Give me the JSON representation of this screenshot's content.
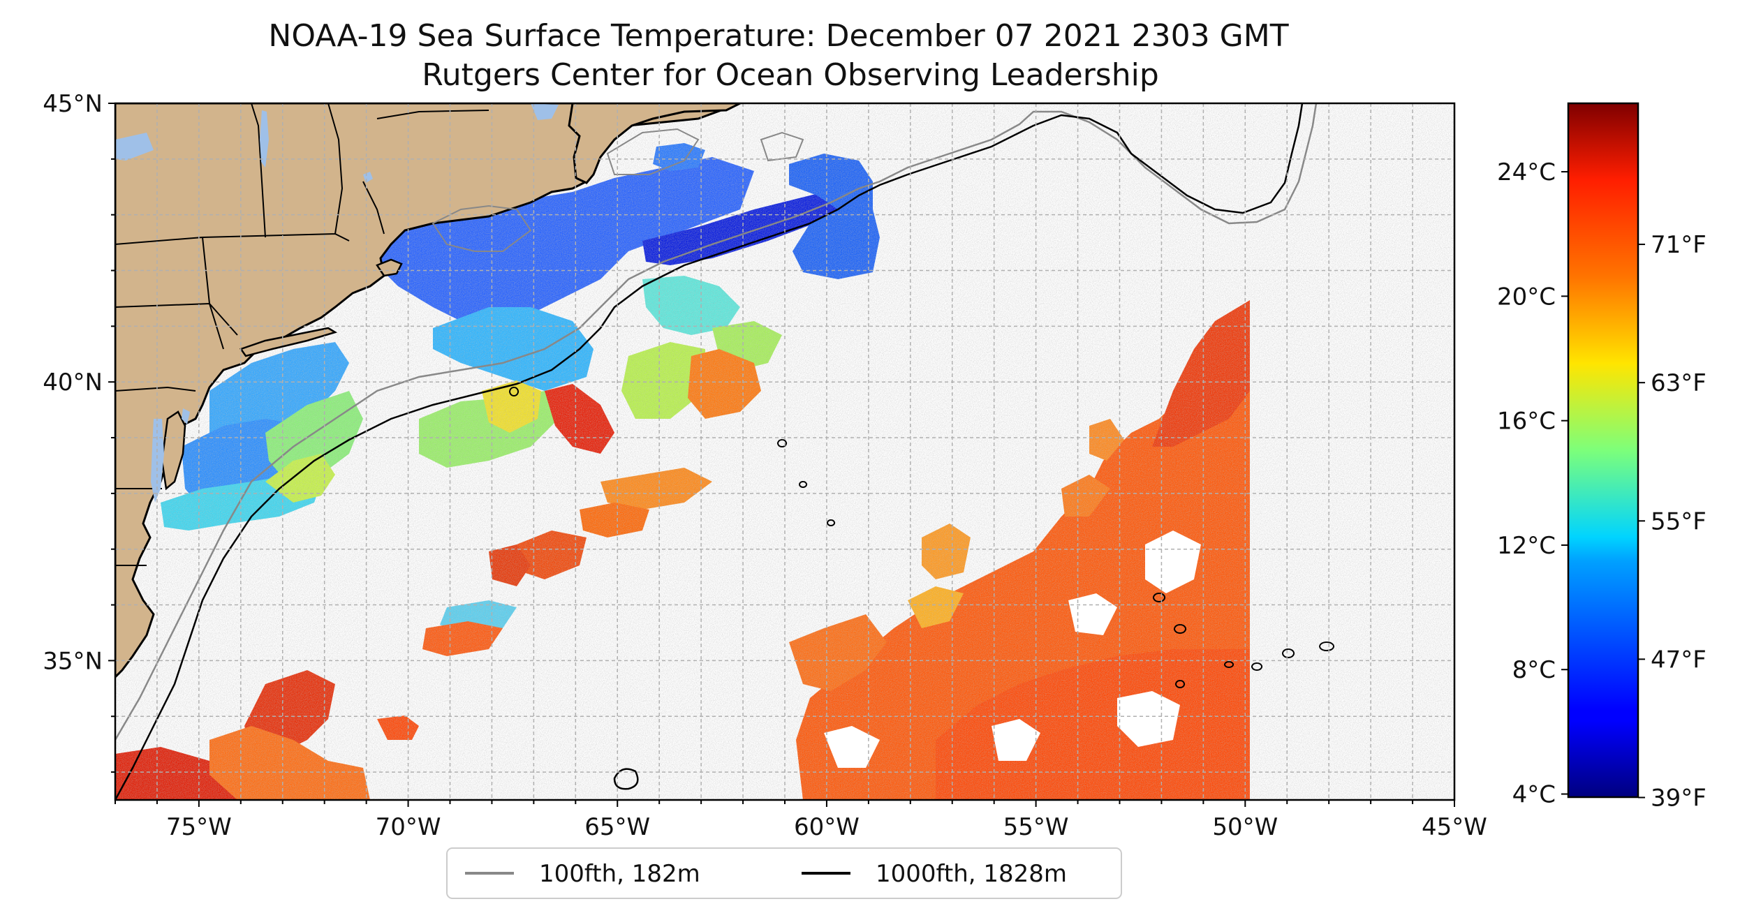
{
  "title": {
    "line1": "NOAA-19 Sea Surface Temperature: December 07 2021 2303 GMT",
    "line2": "Rutgers Center for Ocean Observing Leadership"
  },
  "map": {
    "lon_range": [
      -77,
      -45
    ],
    "lat_range": [
      32.5,
      45
    ],
    "x_ticks": [
      {
        "lon": -75,
        "label": "75°W"
      },
      {
        "lon": -70,
        "label": "70°W"
      },
      {
        "lon": -65,
        "label": "65°W"
      },
      {
        "lon": -60,
        "label": "60°W"
      },
      {
        "lon": -55,
        "label": "55°W"
      },
      {
        "lon": -50,
        "label": "50°W"
      },
      {
        "lon": -45,
        "label": "45°W"
      }
    ],
    "y_ticks": [
      {
        "lat": 45,
        "label": "45°N"
      },
      {
        "lat": 40,
        "label": "40°N"
      },
      {
        "lat": 35,
        "label": "35°N"
      }
    ],
    "grid": true,
    "colors": {
      "land": "#D2B48C",
      "lakes": "#9FC0E8",
      "shelf_100fth": "#888888",
      "slope_1000fth": "#000000",
      "grid": "#b0b0b0"
    }
  },
  "legend": {
    "items": [
      {
        "label": "100fth, 182m",
        "color": "#888888"
      },
      {
        "label": "1000fth, 1828m",
        "color": "#000000"
      }
    ],
    "placement": "bottom-center"
  },
  "colorbar": {
    "colormap": "jet",
    "range_c": [
      3.9,
      26.2
    ],
    "celsius_ticks": [
      {
        "value": 4,
        "label": "4°C"
      },
      {
        "value": 8,
        "label": "8°C"
      },
      {
        "value": 12,
        "label": "12°C"
      },
      {
        "value": 16,
        "label": "16°C"
      },
      {
        "value": 20,
        "label": "20°C"
      },
      {
        "value": 24,
        "label": "24°C"
      }
    ],
    "fahrenheit_ticks": [
      {
        "value": 39,
        "label": "39°F"
      },
      {
        "value": 47,
        "label": "47°F"
      },
      {
        "value": 55,
        "label": "55°F"
      },
      {
        "value": 63,
        "label": "63°F"
      },
      {
        "value": 71,
        "label": "71°F"
      }
    ]
  }
}
